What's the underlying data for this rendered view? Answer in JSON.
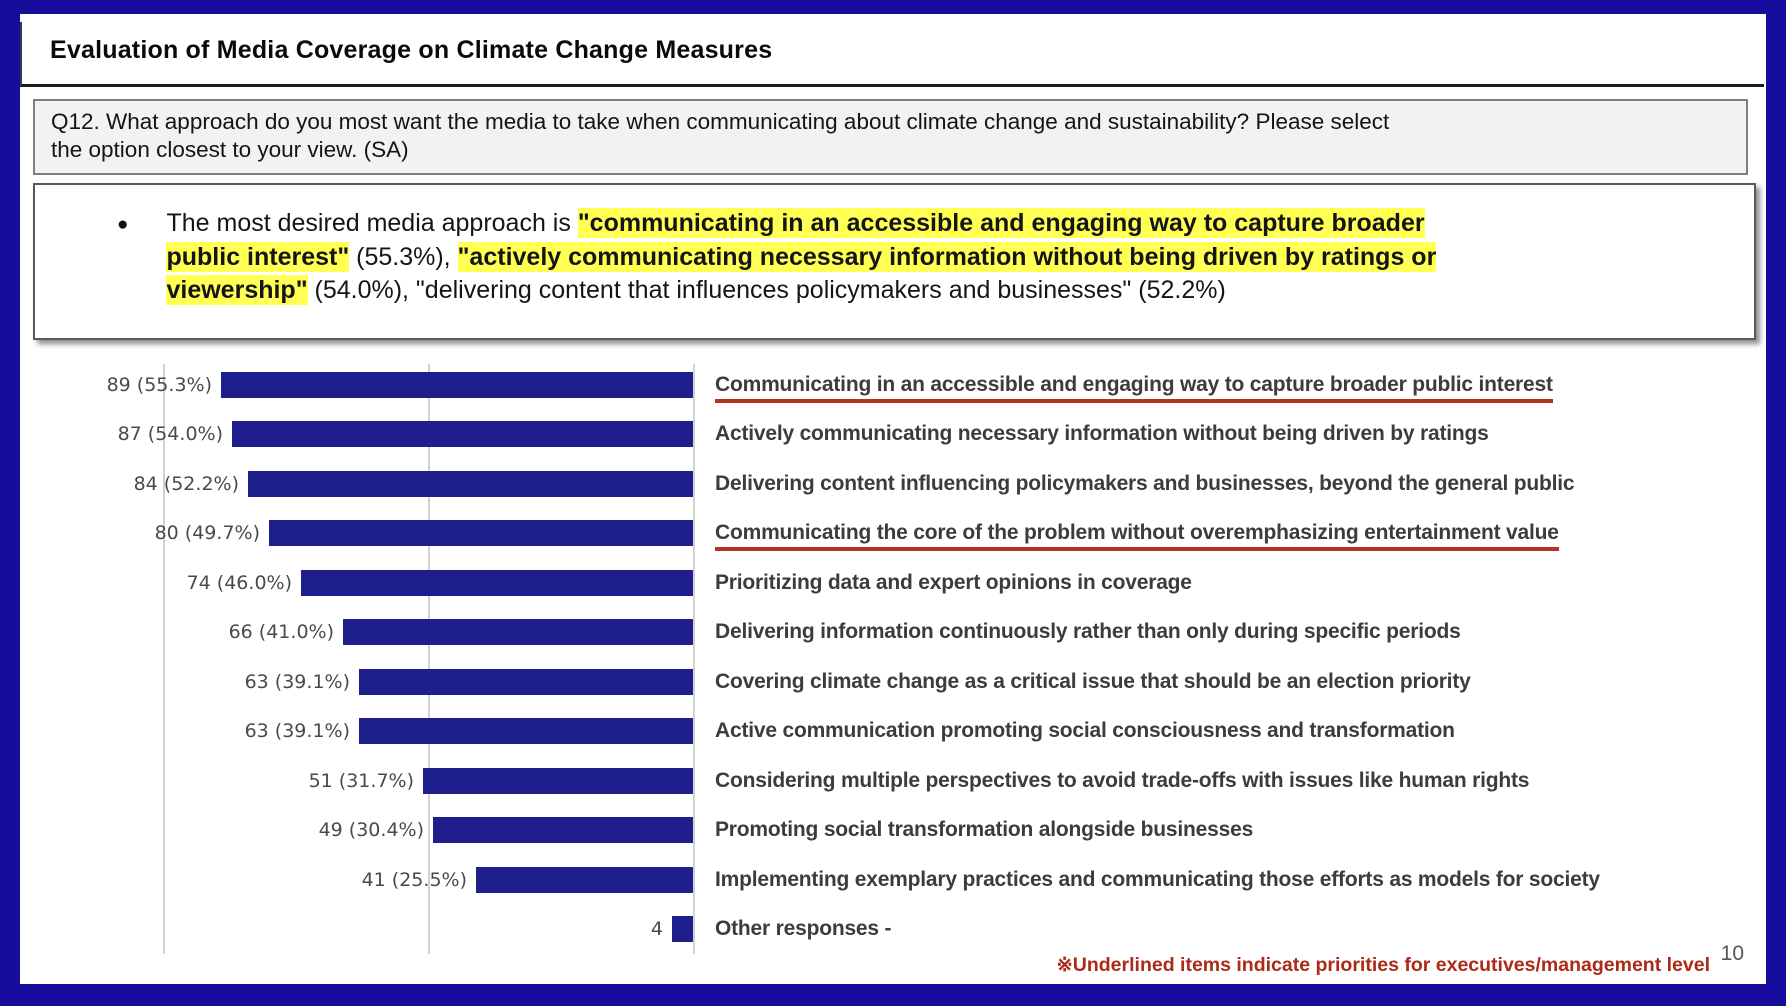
{
  "header": {
    "title": "Evaluation of Media Coverage on Climate Change Measures"
  },
  "question": {
    "lines": [
      "Q12. What approach do you most want the media to take when communicating about climate change and sustainability? Please select",
      "the option closest to your view. (SA)"
    ]
  },
  "summary": {
    "bullet_glyph": "●",
    "segments": [
      {
        "text": "The most desired media approach is ",
        "highlight": false
      },
      {
        "text": "\"communicating in an accessible and engaging way to capture broader",
        "highlight": true
      },
      {
        "break": true
      },
      {
        "text": "public interest\"",
        "highlight": true
      },
      {
        "text": " (55.3%), ",
        "highlight": false
      },
      {
        "text": "\"actively communicating necessary information without being driven by ratings or",
        "highlight": true
      },
      {
        "break": true
      },
      {
        "text": "viewership\"",
        "highlight": true
      },
      {
        "text": " (54.0%), \"delivering content that influences policymakers and businesses\" (52.2%)",
        "highlight": false
      }
    ]
  },
  "chart_data": {
    "type": "bar",
    "orientation": "horizontal",
    "anchored": "right",
    "axis": {
      "min": 0,
      "max": 100,
      "reversed": true,
      "gridline_values": [
        100,
        50,
        0
      ],
      "grid": true
    },
    "legend": "none",
    "items": [
      {
        "label": "Communicating in an accessible and engaging way to capture broader public interest",
        "value": 89,
        "percent": 55.3,
        "value_label": "89 (55.3%)",
        "underlined": true
      },
      {
        "label": "Actively communicating necessary information without being driven by ratings",
        "value": 87,
        "percent": 54.0,
        "value_label": "87 (54.0%)",
        "underlined": false
      },
      {
        "label": "Delivering content influencing policymakers and businesses, beyond the general public",
        "value": 84,
        "percent": 52.2,
        "value_label": "84 (52.2%)",
        "underlined": false
      },
      {
        "label": "Communicating the core of the problem without overemphasizing entertainment value",
        "value": 80,
        "percent": 49.7,
        "value_label": "80 (49.7%)",
        "underlined": true
      },
      {
        "label": "Prioritizing data and expert opinions in coverage",
        "value": 74,
        "percent": 46.0,
        "value_label": "74 (46.0%)",
        "underlined": false
      },
      {
        "label": "Delivering information continuously rather than only during specific periods",
        "value": 66,
        "percent": 41.0,
        "value_label": "66 (41.0%)",
        "underlined": false
      },
      {
        "label": "Covering climate change as a critical issue that should be an election priority",
        "value": 63,
        "percent": 39.1,
        "value_label": "63 (39.1%)",
        "underlined": false
      },
      {
        "label": "Active communication promoting social consciousness and transformation",
        "value": 63,
        "percent": 39.1,
        "value_label": "63 (39.1%)",
        "underlined": false
      },
      {
        "label": "Considering multiple perspectives to avoid trade-offs with issues like human rights",
        "value": 51,
        "percent": 31.7,
        "value_label": "51 (31.7%)",
        "underlined": false
      },
      {
        "label": "Promoting social transformation alongside businesses",
        "value": 49,
        "percent": 30.4,
        "value_label": "49 (30.4%)",
        "underlined": false
      },
      {
        "label": "Implementing exemplary practices and communicating those efforts as models for society",
        "value": 41,
        "percent": 25.5,
        "value_label": "41 (25.5%)",
        "underlined": false
      },
      {
        "label": "Other responses -",
        "value": 4,
        "percent": null,
        "value_label": "4",
        "underlined": false
      }
    ]
  },
  "footer": {
    "note": "※Underlined items indicate priorities for executives/management level",
    "page_number": "10"
  },
  "colors": {
    "border-navy": "#170d9c",
    "bar-navy": "#1e1e8c",
    "highlight-yellow": "#ffff54",
    "underline-red": "#b23427",
    "footnote-red": "#ad2a17",
    "question-bg": "#f2f2f2",
    "label-gray": "#3c3c3c",
    "value-gray": "#4a4a4a"
  }
}
